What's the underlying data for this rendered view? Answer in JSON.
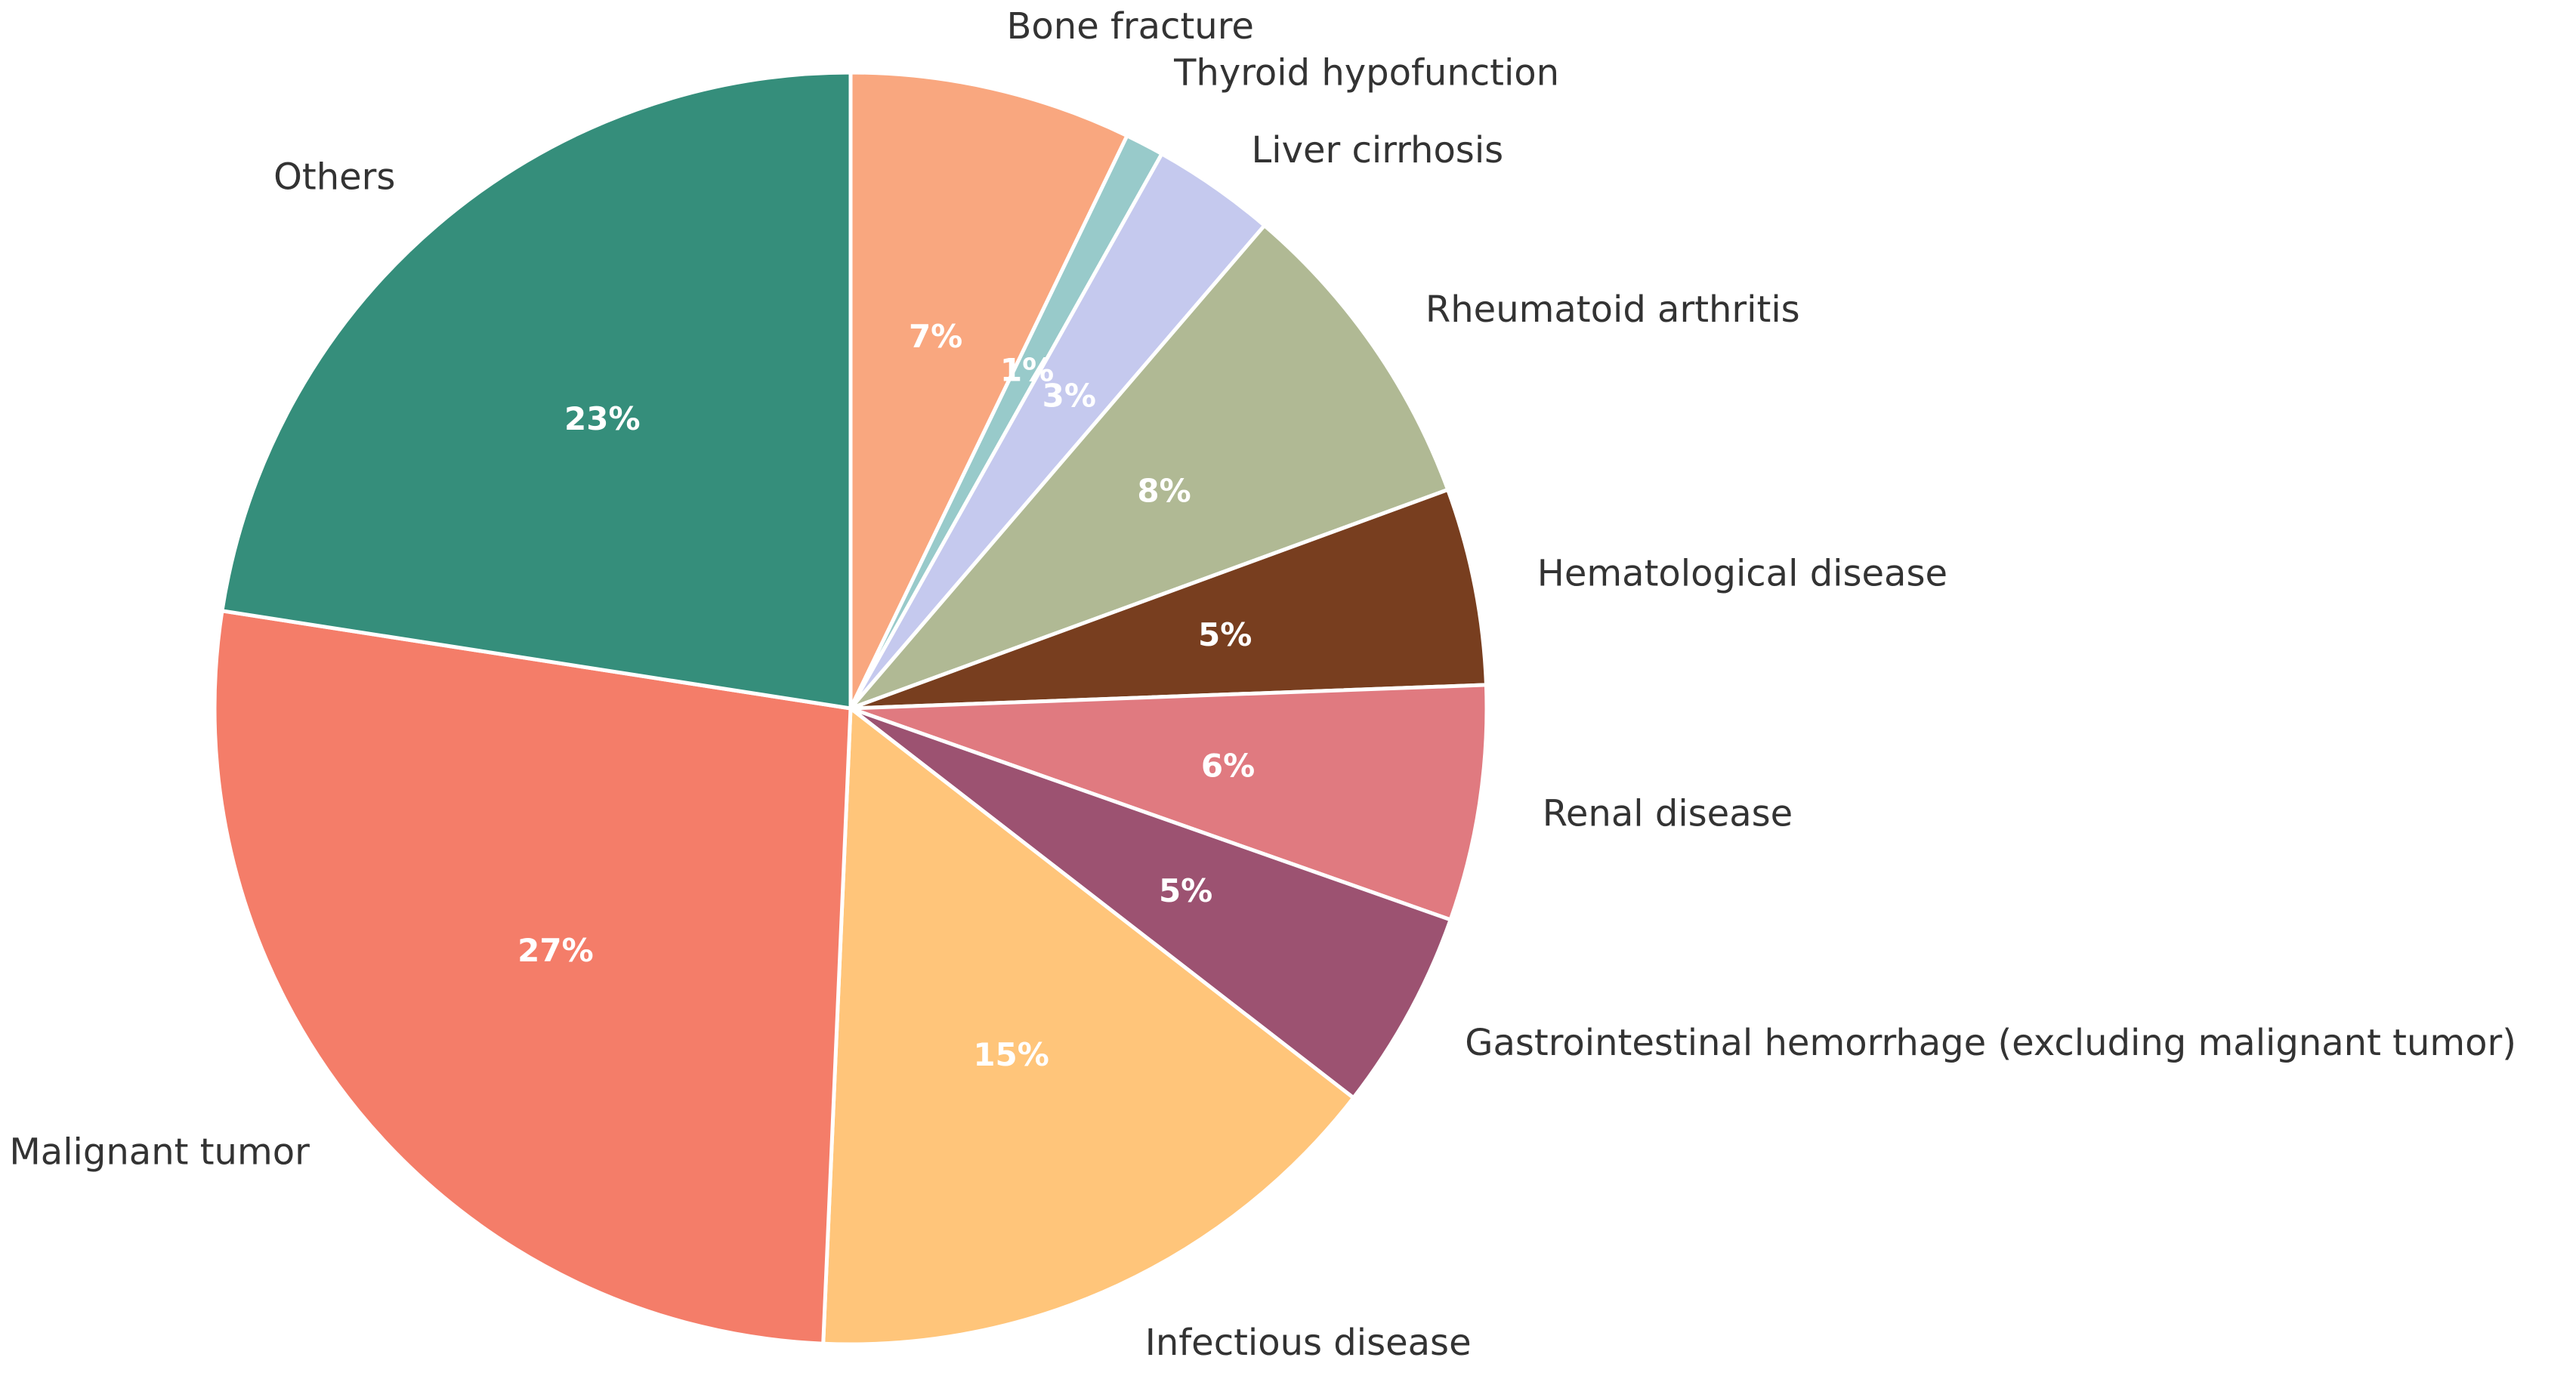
{
  "chart_data": {
    "type": "pie",
    "title": "",
    "categories": [
      "Bone fracture",
      "Thyroid hypofunction",
      "Liver cirrhosis",
      "Rheumatoid arthritis",
      "Hematological disease",
      "Renal disease",
      "Gastrointestinal hemorrhage (excluding malignant tumor)",
      "Infectious disease",
      "Malignant tumor",
      "Others"
    ],
    "values": [
      7.3,
      1.0,
      3.2,
      8.3,
      5.1,
      6.1,
      5.2,
      15.5,
      27.3,
      23.0
    ],
    "percent_labels": [
      "7%",
      "1%",
      "3%",
      "8%",
      "5%",
      "6%",
      "5%",
      "15%",
      "27%",
      "23%"
    ],
    "colors": [
      "#F9A77F",
      "#98CACA",
      "#C5C9EE",
      "#B0B994",
      "#783E1F",
      "#E07A80",
      "#9C5271",
      "#FFC57A",
      "#F47D69",
      "#358E7B"
    ],
    "start_angle_deg": 90,
    "direction": "clockwise",
    "legend": "none"
  }
}
